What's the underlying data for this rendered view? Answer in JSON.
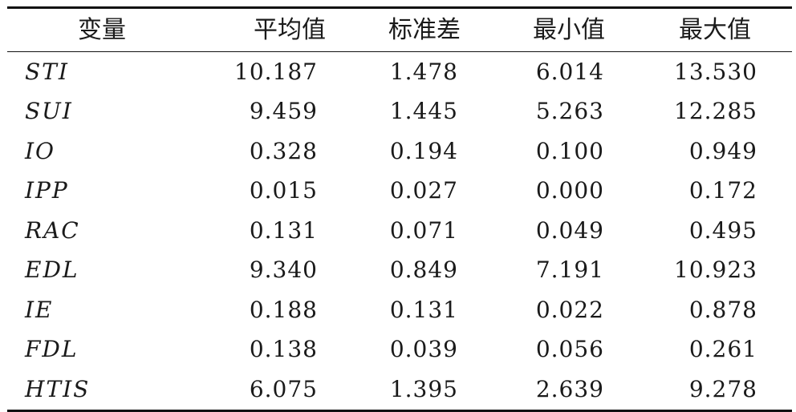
{
  "table": {
    "headers": [
      "变量",
      "平均值",
      "标准差",
      "最小值",
      "最大值"
    ],
    "rows": [
      [
        "STI",
        "10.187",
        "1.478",
        "6.014",
        "13.530"
      ],
      [
        "SUI",
        "9.459",
        "1.445",
        "5.263",
        "12.285"
      ],
      [
        "IO",
        "0.328",
        "0.194",
        "0.100",
        "0.949"
      ],
      [
        "IPP",
        "0.015",
        "0.027",
        "0.000",
        "0.172"
      ],
      [
        "RAC",
        "0.131",
        "0.071",
        "0.049",
        "0.495"
      ],
      [
        "EDL",
        "9.340",
        "0.849",
        "7.191",
        "10.923"
      ],
      [
        "IE",
        "0.188",
        "0.131",
        "0.022",
        "0.878"
      ],
      [
        "FDL",
        "0.138",
        "0.039",
        "0.056",
        "0.261"
      ],
      [
        "HTIS",
        "6.075",
        "1.395",
        "2.639",
        "9.278"
      ]
    ]
  }
}
